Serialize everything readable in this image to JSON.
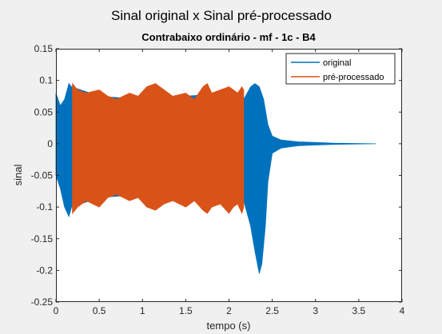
{
  "figure": {
    "suptitle": "Sinal original x Sinal pré-processado"
  },
  "chart_data": {
    "type": "line",
    "title": "Contrabaixo ordinário - mf - 1c - B4",
    "xlabel": "tempo (s)",
    "ylabel": "sinal",
    "xlim": [
      0,
      4
    ],
    "ylim": [
      -0.25,
      0.15
    ],
    "xticks": [
      0,
      0.5,
      1,
      1.5,
      2,
      2.5,
      3,
      3.5,
      4
    ],
    "xtick_labels": [
      "0",
      "0.5",
      "1",
      "1.5",
      "2",
      "2.5",
      "3",
      "3.5",
      "4"
    ],
    "yticks": [
      -0.25,
      -0.2,
      -0.15,
      -0.1,
      -0.05,
      0,
      0.05,
      0.1,
      0.15
    ],
    "ytick_labels": [
      "-0.25",
      "-0.2",
      "-0.15",
      "-0.1",
      "-0.05",
      "0",
      "0.05",
      "0.1",
      "0.15"
    ],
    "legend_position": "top-right",
    "grid": false,
    "series": [
      {
        "name": "original",
        "color": "#0072bd",
        "envelope_upper": [
          [
            0,
            0.08
          ],
          [
            0.05,
            0.06
          ],
          [
            0.1,
            0.07
          ],
          [
            0.15,
            0.095
          ],
          [
            0.18,
            0.09
          ],
          [
            0.5,
            0.075
          ],
          [
            1.0,
            0.07
          ],
          [
            1.5,
            0.075
          ],
          [
            2.0,
            0.08
          ],
          [
            2.17,
            0.07
          ],
          [
            2.25,
            0.09
          ],
          [
            2.3,
            0.095
          ],
          [
            2.35,
            0.09
          ],
          [
            2.4,
            0.07
          ],
          [
            2.45,
            0.03
          ],
          [
            2.5,
            0.012
          ],
          [
            2.6,
            0.006
          ],
          [
            2.8,
            0.003
          ],
          [
            3.0,
            0.002
          ],
          [
            3.2,
            0.001
          ],
          [
            3.7,
            0.0
          ]
        ],
        "envelope_lower": [
          [
            0,
            -0.05
          ],
          [
            0.05,
            -0.07
          ],
          [
            0.1,
            -0.1
          ],
          [
            0.15,
            -0.115
          ],
          [
            0.18,
            -0.1
          ],
          [
            0.5,
            -0.085
          ],
          [
            1.0,
            -0.08
          ],
          [
            1.5,
            -0.085
          ],
          [
            2.0,
            -0.09
          ],
          [
            2.17,
            -0.09
          ],
          [
            2.25,
            -0.13
          ],
          [
            2.3,
            -0.17
          ],
          [
            2.35,
            -0.205
          ],
          [
            2.38,
            -0.19
          ],
          [
            2.42,
            -0.13
          ],
          [
            2.45,
            -0.06
          ],
          [
            2.5,
            -0.015
          ],
          [
            2.6,
            -0.007
          ],
          [
            2.8,
            -0.003
          ],
          [
            3.0,
            -0.002
          ],
          [
            3.2,
            -0.001
          ],
          [
            3.7,
            0.0
          ]
        ]
      },
      {
        "name": "pré-processado",
        "color": "#d95319",
        "envelope_upper": [
          [
            0.19,
            0.095
          ],
          [
            0.25,
            0.085
          ],
          [
            0.35,
            0.08
          ],
          [
            0.5,
            0.085
          ],
          [
            0.6,
            0.075
          ],
          [
            0.7,
            0.07
          ],
          [
            0.85,
            0.08
          ],
          [
            0.95,
            0.075
          ],
          [
            1.05,
            0.09
          ],
          [
            1.15,
            0.095
          ],
          [
            1.25,
            0.085
          ],
          [
            1.35,
            0.075
          ],
          [
            1.5,
            0.08
          ],
          [
            1.6,
            0.07
          ],
          [
            1.7,
            0.09
          ],
          [
            1.75,
            0.095
          ],
          [
            1.8,
            0.08
          ],
          [
            1.9,
            0.085
          ],
          [
            2.0,
            0.09
          ],
          [
            2.05,
            0.085
          ],
          [
            2.1,
            0.08
          ],
          [
            2.15,
            0.09
          ],
          [
            2.17,
            0.085
          ]
        ],
        "envelope_lower": [
          [
            0.19,
            -0.11
          ],
          [
            0.25,
            -0.1
          ],
          [
            0.35,
            -0.09
          ],
          [
            0.5,
            -0.1
          ],
          [
            0.6,
            -0.085
          ],
          [
            0.7,
            -0.08
          ],
          [
            0.85,
            -0.09
          ],
          [
            0.95,
            -0.085
          ],
          [
            1.05,
            -0.1
          ],
          [
            1.15,
            -0.105
          ],
          [
            1.25,
            -0.095
          ],
          [
            1.35,
            -0.09
          ],
          [
            1.5,
            -0.1
          ],
          [
            1.6,
            -0.09
          ],
          [
            1.7,
            -0.105
          ],
          [
            1.75,
            -0.11
          ],
          [
            1.8,
            -0.1
          ],
          [
            1.9,
            -0.095
          ],
          [
            2.0,
            -0.11
          ],
          [
            2.05,
            -0.1
          ],
          [
            2.1,
            -0.095
          ],
          [
            2.15,
            -0.11
          ],
          [
            2.17,
            -0.1
          ]
        ]
      }
    ]
  }
}
